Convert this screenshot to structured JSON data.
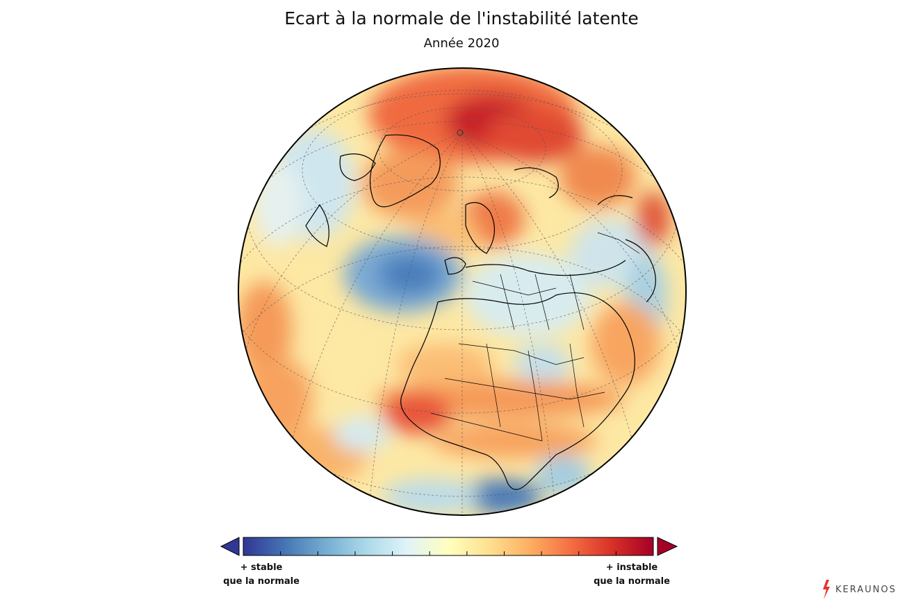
{
  "header": {
    "title": "Ecart à la normale de l'instabilité latente",
    "subtitle": "Année 2020"
  },
  "colorbar": {
    "stable_label": "+ stable\nque la normale",
    "unstable_label": "+ instable\nque la normale",
    "stable_lines": [
      "+ stable",
      "que la normale"
    ],
    "unstable_lines": [
      "+ instable",
      "que la normale"
    ],
    "colors": [
      "#313695",
      "#4575b4",
      "#74add1",
      "#abd9e9",
      "#e0f3f8",
      "#ffffbf",
      "#fee090",
      "#fdae61",
      "#f46d43",
      "#d73027",
      "#a50026"
    ],
    "tick_count": 11
  },
  "logo": {
    "text": "KERAUNOS",
    "accent": "#e8312c"
  }
}
